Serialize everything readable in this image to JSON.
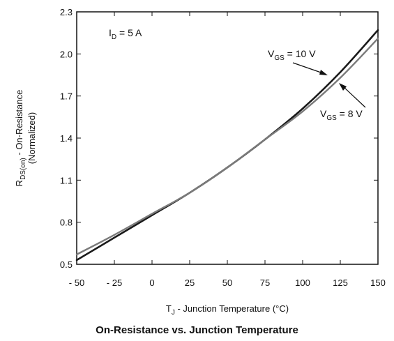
{
  "caption": "On-Resistance vs. Junction Temperature",
  "chart_data": {
    "type": "line",
    "xlabel": {
      "main": "T",
      "sub": "J",
      "rest": " - Junction Temperature (°C)"
    },
    "ylabel": {
      "main": "R",
      "sub": "DS(on)",
      "rest": " - On-Resistance",
      "line2": "(Normalized)"
    },
    "xlim": [
      -50,
      150
    ],
    "ylim": [
      0.5,
      2.3
    ],
    "xticks": [
      -50,
      -25,
      0,
      25,
      50,
      75,
      100,
      125,
      150
    ],
    "xtick_labels": [
      "- 50",
      "- 25",
      "0",
      "25",
      "50",
      "75",
      "100",
      "125",
      "150"
    ],
    "yticks": [
      0.5,
      0.8,
      1.1,
      1.4,
      1.7,
      2.0,
      2.3
    ],
    "ytick_labels": [
      "0.5",
      "0.8",
      "1.1",
      "1.4",
      "1.7",
      "2.0",
      "2.3"
    ],
    "grid": false,
    "annotations": [
      {
        "main": "I",
        "sub": "D",
        "rest": " = 5 A"
      }
    ],
    "series": [
      {
        "name": {
          "main": "V",
          "sub": "GS",
          "rest": " = 10 V"
        },
        "color": "#1a1a1a",
        "x": [
          -50,
          -25,
          0,
          25,
          50,
          75,
          100,
          125,
          150
        ],
        "y": [
          0.53,
          0.69,
          0.85,
          1.01,
          1.19,
          1.39,
          1.61,
          1.87,
          2.17
        ]
      },
      {
        "name": {
          "main": "V",
          "sub": "GS",
          "rest": " = 8 V"
        },
        "color": "#7a7a7a",
        "x": [
          -50,
          -25,
          0,
          25,
          50,
          75,
          100,
          125,
          150
        ],
        "y": [
          0.57,
          0.71,
          0.86,
          1.01,
          1.19,
          1.39,
          1.59,
          1.83,
          2.11
        ]
      }
    ]
  }
}
